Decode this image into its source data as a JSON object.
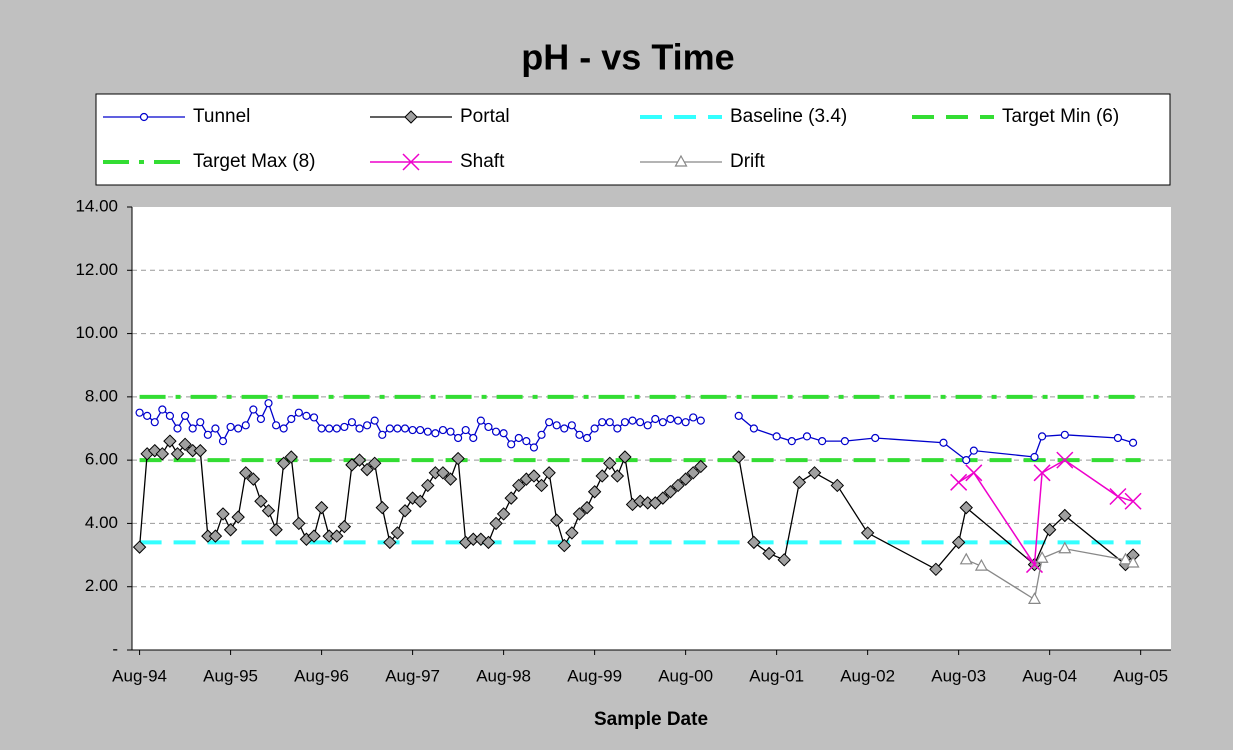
{
  "chart_data": {
    "type": "line",
    "title": "pH - vs Time",
    "x_label": "Sample Date",
    "xlim": [
      "1994-07",
      "2005-12"
    ],
    "xticks": [
      {
        "value": "1994-08",
        "label": "Aug-94"
      },
      {
        "value": "1995-08",
        "label": "Aug-95"
      },
      {
        "value": "1996-08",
        "label": "Aug-96"
      },
      {
        "value": "1997-08",
        "label": "Aug-97"
      },
      {
        "value": "1998-08",
        "label": "Aug-98"
      },
      {
        "value": "1999-08",
        "label": "Aug-99"
      },
      {
        "value": "2000-08",
        "label": "Aug-00"
      },
      {
        "value": "2001-08",
        "label": "Aug-01"
      },
      {
        "value": "2002-08",
        "label": "Aug-02"
      },
      {
        "value": "2003-08",
        "label": "Aug-03"
      },
      {
        "value": "2004-08",
        "label": "Aug-04"
      },
      {
        "value": "2005-08",
        "label": "Aug-05"
      }
    ],
    "ylim": [
      0,
      14
    ],
    "yticks": [
      {
        "value": 0,
        "label": "-"
      },
      {
        "value": 2,
        "label": "2.00"
      },
      {
        "value": 4,
        "label": "4.00"
      },
      {
        "value": 6,
        "label": "6.00"
      },
      {
        "value": 8,
        "label": "8.00"
      },
      {
        "value": 10,
        "label": "10.00"
      },
      {
        "value": 12,
        "label": "12.00"
      },
      {
        "value": 14,
        "label": "14.00"
      }
    ],
    "grid": true,
    "series": [
      {
        "name": "Tunnel",
        "color": "#0000cc",
        "marker": "circle",
        "dash": "solid",
        "x": [
          "1994-08",
          "1994-09",
          "1994-10",
          "1994-11",
          "1994-12",
          "1995-01",
          "1995-02",
          "1995-03",
          "1995-04",
          "1995-05",
          "1995-06",
          "1995-07",
          "1995-08",
          "1995-09",
          "1995-10",
          "1995-11",
          "1995-12",
          "1996-01",
          "1996-02",
          "1996-03",
          "1996-04",
          "1996-05",
          "1996-06",
          "1996-07",
          "1996-08",
          "1996-09",
          "1996-10",
          "1996-11",
          "1996-12",
          "1997-01",
          "1997-02",
          "1997-03",
          "1997-04",
          "1997-05",
          "1997-06",
          "1997-07",
          "1997-08",
          "1997-09",
          "1997-10",
          "1997-11",
          "1997-12",
          "1998-01",
          "1998-02",
          "1998-03",
          "1998-04",
          "1998-05",
          "1998-06",
          "1998-07",
          "1998-08",
          "1998-09",
          "1998-10",
          "1998-11",
          "1998-12",
          "1999-01",
          "1999-02",
          "1999-03",
          "1999-04",
          "1999-05",
          "1999-06",
          "1999-07",
          "1999-08",
          "1999-09",
          "1999-10",
          "1999-11",
          "1999-12",
          "2000-01",
          "2000-02",
          "2000-03",
          "2000-04",
          "2000-05",
          "2000-06",
          "2000-07",
          "2000-08",
          "2000-09",
          "2000-10",
          "2001-01",
          "2001-03",
          "2001-05",
          "2001-08",
          "2001-10",
          "2001-12",
          "2002-02",
          "2002-05",
          "2002-09",
          "2003-06",
          "2003-09",
          "2003-10",
          "2004-06",
          "2004-07",
          "2004-10",
          "2005-05",
          "2005-07"
        ],
        "values": [
          7.5,
          7.4,
          7.2,
          7.6,
          7.4,
          7.0,
          7.4,
          7.0,
          7.2,
          6.8,
          7.0,
          6.6,
          7.05,
          7.0,
          7.1,
          7.6,
          7.3,
          7.8,
          7.1,
          7.0,
          7.3,
          7.5,
          7.4,
          7.35,
          7.0,
          7.0,
          7.0,
          7.05,
          7.2,
          7.0,
          7.1,
          7.25,
          6.8,
          7.0,
          7.0,
          7.0,
          6.95,
          6.95,
          6.9,
          6.85,
          6.95,
          6.9,
          6.7,
          6.95,
          6.7,
          7.25,
          7.05,
          6.9,
          6.85,
          6.5,
          6.7,
          6.6,
          6.4,
          6.8,
          7.2,
          7.1,
          7.0,
          7.1,
          6.8,
          6.7,
          7.0,
          7.2,
          7.2,
          7.0,
          7.2,
          7.25,
          7.2,
          7.1,
          7.3,
          7.2,
          7.3,
          7.25,
          7.2,
          7.35,
          7.25,
          null,
          7.4,
          7.0,
          6.75,
          6.6,
          6.75,
          6.6,
          6.6,
          6.7,
          6.55,
          6.0,
          6.3,
          6.1,
          6.75,
          6.8,
          6.7,
          6.55
        ]
      },
      {
        "name": "Portal",
        "color": "#000000",
        "marker": "diamond",
        "dash": "solid",
        "x": [
          "1994-08",
          "1994-09",
          "1994-10",
          "1994-11",
          "1994-12",
          "1995-01",
          "1995-02",
          "1995-03",
          "1995-04",
          "1995-05",
          "1995-06",
          "1995-07",
          "1995-08",
          "1995-09",
          "1995-10",
          "1995-11",
          "1995-12",
          "1996-01",
          "1996-02",
          "1996-03",
          "1996-04",
          "1996-05",
          "1996-06",
          "1996-07",
          "1996-08",
          "1996-09",
          "1996-10",
          "1996-11",
          "1996-12",
          "1997-01",
          "1997-02",
          "1997-03",
          "1997-04",
          "1997-05",
          "1997-06",
          "1997-07",
          "1997-08",
          "1997-09",
          "1997-10",
          "1997-11",
          "1997-12",
          "1998-01",
          "1998-02",
          "1998-03",
          "1998-04",
          "1998-05",
          "1998-06",
          "1998-07",
          "1998-08",
          "1998-09",
          "1998-10",
          "1998-11",
          "1998-12",
          "1999-01",
          "1999-02",
          "1999-03",
          "1999-04",
          "1999-05",
          "1999-06",
          "1999-07",
          "1999-08",
          "1999-09",
          "1999-10",
          "1999-11",
          "1999-12",
          "2000-01",
          "2000-02",
          "2000-03",
          "2000-04",
          "2000-05",
          "2000-06",
          "2000-07",
          "2000-08",
          "2000-09",
          "2000-10",
          "2001-01",
          "2001-03",
          "2001-05",
          "2001-07",
          "2001-09",
          "2001-11",
          "2002-01",
          "2002-04",
          "2002-08",
          "2003-05",
          "2003-08",
          "2003-09",
          "2004-06",
          "2004-08",
          "2004-10",
          "2005-06",
          "2005-07"
        ],
        "values": [
          3.25,
          6.2,
          6.3,
          6.2,
          6.6,
          6.2,
          6.5,
          6.3,
          6.3,
          3.6,
          3.6,
          4.3,
          3.8,
          4.2,
          5.6,
          5.4,
          4.7,
          4.4,
          3.8,
          5.9,
          6.1,
          4.0,
          3.5,
          3.6,
          4.5,
          3.6,
          3.6,
          3.9,
          5.85,
          6.0,
          5.7,
          5.9,
          4.5,
          3.4,
          3.7,
          4.4,
          4.8,
          4.7,
          5.2,
          5.6,
          5.6,
          5.4,
          6.05,
          3.4,
          3.5,
          3.5,
          3.4,
          4.0,
          4.3,
          4.8,
          5.2,
          5.4,
          5.5,
          5.2,
          5.6,
          4.1,
          3.3,
          3.7,
          4.3,
          4.5,
          5.0,
          5.5,
          5.9,
          5.5,
          6.1,
          4.6,
          4.7,
          4.65,
          4.65,
          4.8,
          5.0,
          5.2,
          5.4,
          5.6,
          5.8,
          null,
          6.1,
          3.4,
          3.05,
          2.85,
          5.3,
          5.6,
          5.2,
          3.7,
          2.55,
          3.4,
          4.5,
          2.7,
          3.8,
          4.25,
          2.7,
          3.0
        ]
      },
      {
        "name": "Baseline (3.4)",
        "color": "#33ffff",
        "marker": "none",
        "dash": "dash",
        "x": [
          "1994-08",
          "2005-08"
        ],
        "values": [
          3.4,
          3.4
        ]
      },
      {
        "name": "Target Min (6)",
        "color": "#33dd33",
        "marker": "none",
        "dash": "dash",
        "x": [
          "1994-08",
          "2005-08"
        ],
        "values": [
          6,
          6
        ]
      },
      {
        "name": "Target Max (8)",
        "color": "#33dd33",
        "marker": "none",
        "dash": "dashdot",
        "x": [
          "1994-08",
          "2005-08"
        ],
        "values": [
          8,
          8
        ]
      },
      {
        "name": "Shaft",
        "color": "#ee00cc",
        "marker": "cross",
        "dash": "solid",
        "x": [
          "2003-08",
          "2003-10",
          "2004-06",
          "2004-07",
          "2004-10",
          "2005-05",
          "2005-07"
        ],
        "values": [
          5.3,
          5.6,
          2.7,
          5.6,
          6.0,
          4.85,
          4.7
        ]
      },
      {
        "name": "Drift",
        "color": "#888888",
        "marker": "triangle",
        "dash": "solid",
        "x": [
          "2003-09",
          "2003-11",
          "2004-06",
          "2004-07",
          "2004-10",
          "2005-06",
          "2005-07"
        ],
        "values": [
          2.85,
          2.65,
          1.6,
          2.9,
          3.2,
          2.85,
          2.75
        ]
      }
    ]
  }
}
